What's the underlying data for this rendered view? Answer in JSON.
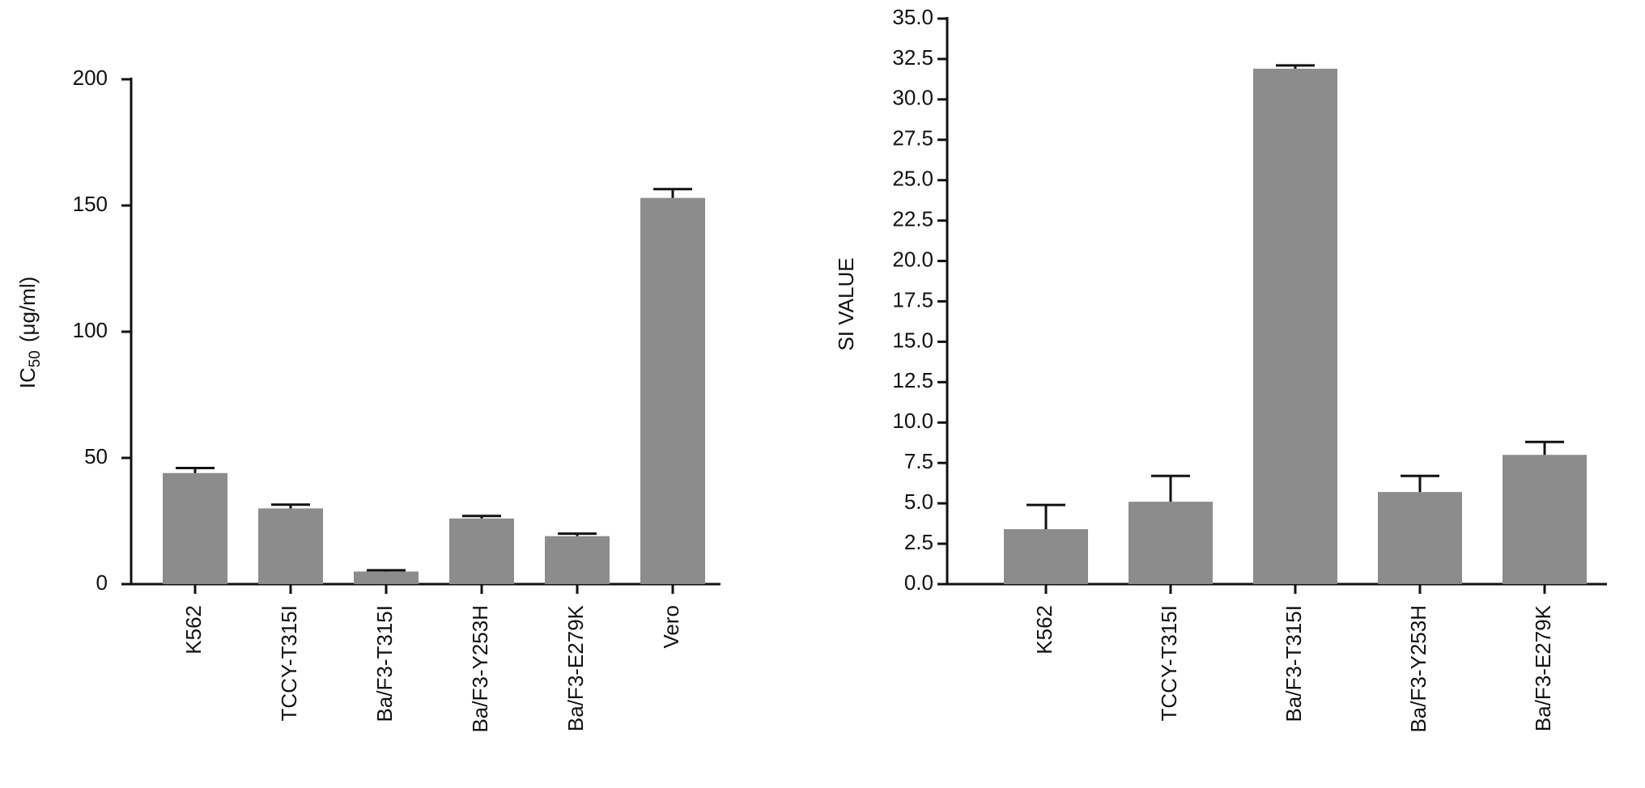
{
  "chart_data": [
    {
      "type": "bar",
      "y_label_parts": [
        "IC",
        "50",
        "(μg/ml)"
      ],
      "categories": [
        "K562",
        "TCCY-T315I",
        "Ba/F3-T315I",
        "Ba/F3-Y253H",
        "Ba/F3-E279K",
        "Vero"
      ],
      "values": [
        44,
        30,
        5,
        26,
        19,
        153
      ],
      "errors": [
        2,
        1.5,
        0.5,
        1,
        1,
        3.5
      ],
      "color": "#8c8c8c",
      "ylim": [
        0,
        200
      ],
      "yticks": [
        0,
        50,
        100,
        150,
        200
      ]
    },
    {
      "type": "bar",
      "y_label": "SI VALUE",
      "categories": [
        "K562",
        "TCCY-T315I",
        "Ba/F3-T315I",
        "Ba/F3-Y253H",
        "Ba/F3-E279K"
      ],
      "values": [
        3.4,
        5.1,
        31.9,
        5.7,
        8.0
      ],
      "errors": [
        1.5,
        1.6,
        0.2,
        1.0,
        0.8
      ],
      "color": "#8c8c8c",
      "ylim": [
        0,
        35
      ],
      "yticks": [
        {
          "value": 0,
          "label": "0.0"
        },
        2.5,
        {
          "value": 5,
          "label": "5.0"
        },
        7.5,
        {
          "value": 10,
          "label": "10.0"
        },
        12.5,
        {
          "value": 15,
          "label": "15.0"
        },
        17.5,
        {
          "value": 20,
          "label": "20.0"
        },
        22.5,
        {
          "value": 25,
          "label": "25.0"
        },
        27.5,
        {
          "value": 30,
          "label": "30.0"
        },
        32.5,
        {
          "value": 35,
          "label": "35.0"
        }
      ]
    }
  ]
}
